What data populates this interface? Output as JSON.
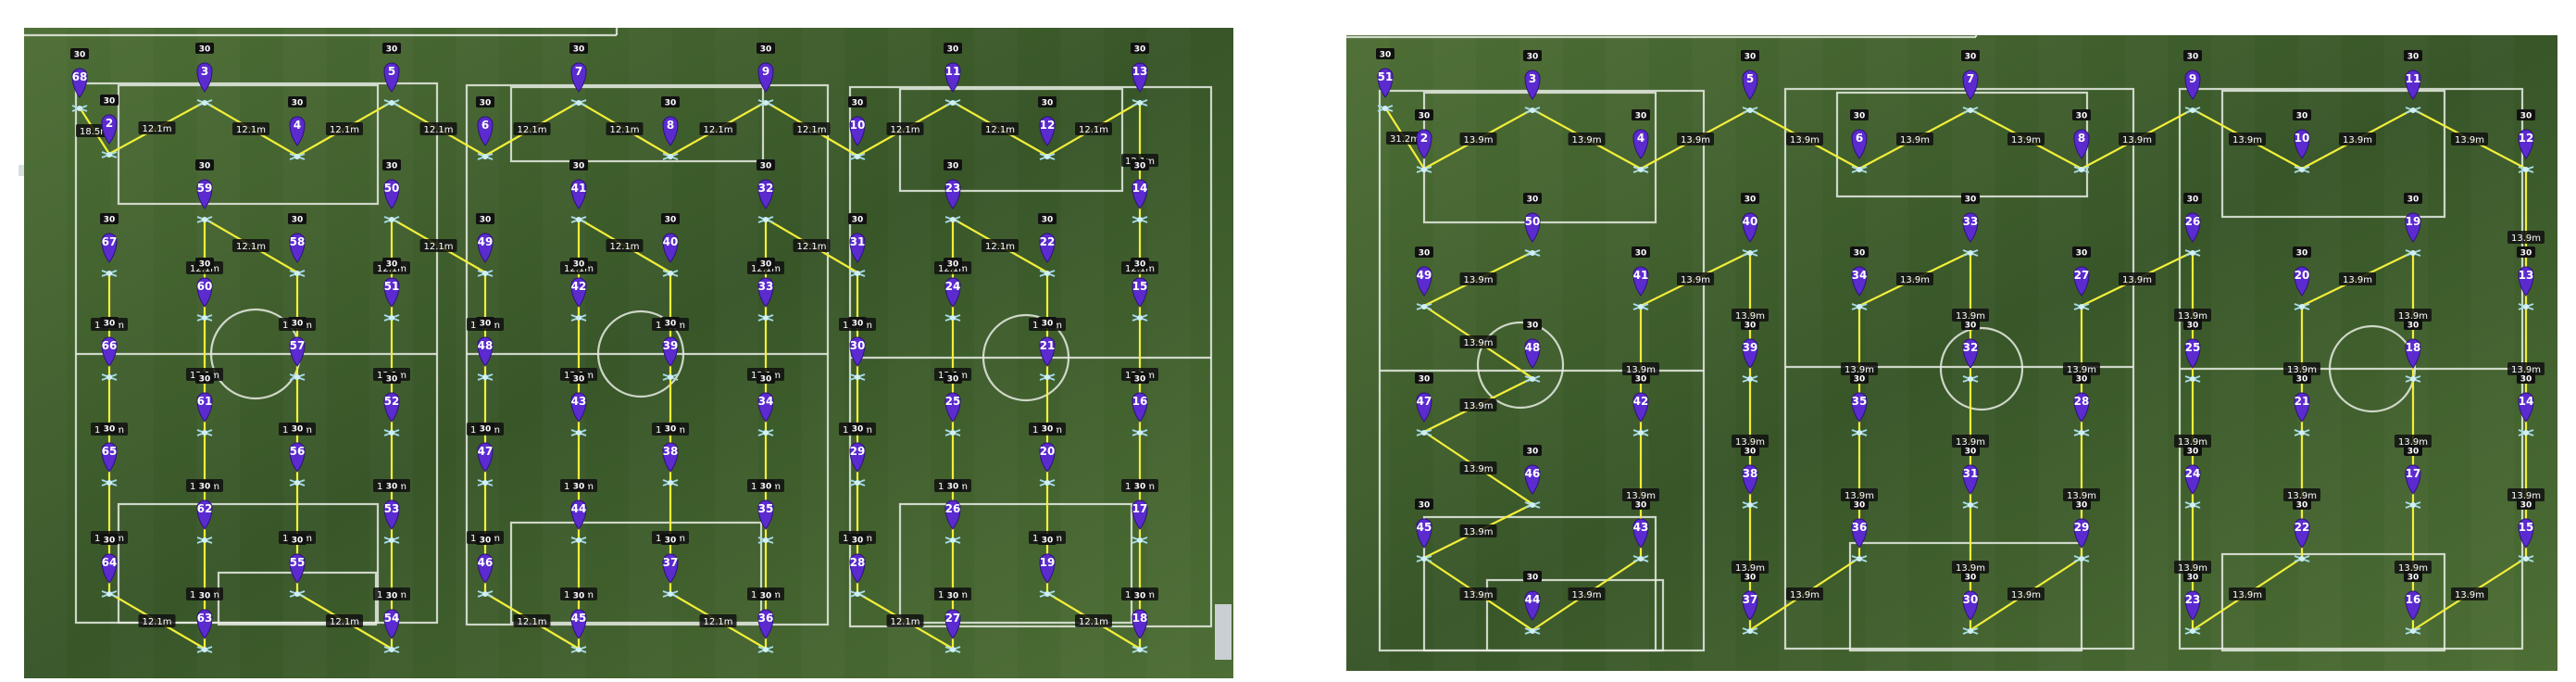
{
  "colors": {
    "grass_dark": "#385628",
    "grass_light": "#4d6e35",
    "field_line": "#e8ece4",
    "route_line": "#f2ee3a",
    "marker": "#5b2bd0",
    "badge_bg": "#111111",
    "badge_text": "#ffffff"
  },
  "icons": {
    "waypoint": "map-pin-icon",
    "ground": "drone-icon"
  },
  "maps": [
    {
      "name": "left",
      "altitude_label": "30",
      "distance_label": "12.1m",
      "first_waypoint_label": "18.5m",
      "waypoint_count": 68
    },
    {
      "name": "right",
      "altitude_label": "30",
      "distance_label": "13.9m",
      "first_waypoint_label": "31.2m",
      "waypoint_count": 51
    }
  ]
}
